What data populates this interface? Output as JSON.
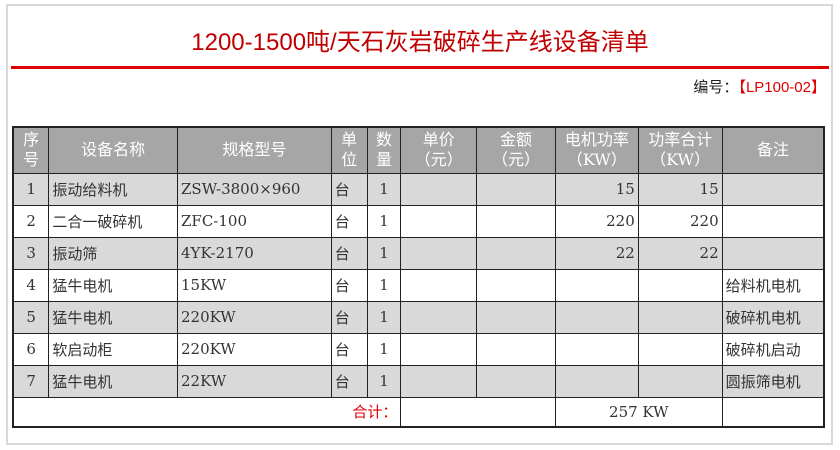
{
  "title": "1200-1500吨/天石灰岩破碎生产线设备清单",
  "code_label": "编号：",
  "code_value": "【LP100-02】",
  "headers": {
    "no": [
      "序",
      "号"
    ],
    "name": "设备名称",
    "spec": "规格型号",
    "unit": [
      "单",
      "位"
    ],
    "qty": [
      "数",
      "量"
    ],
    "price": [
      "单价",
      "（元）"
    ],
    "amount": [
      "金额",
      "（元）"
    ],
    "power": [
      "电机功率",
      "（KW）"
    ],
    "power_total": [
      "功率合计",
      "（KW）"
    ],
    "remark": "备注"
  },
  "rows": [
    {
      "no": "1",
      "name": "振动给料机",
      "spec": "ZSW-3800×960",
      "unit": "台",
      "qty": "1",
      "price": "",
      "amount": "",
      "power": "15",
      "power_total": "15",
      "remark": ""
    },
    {
      "no": "2",
      "name": "二合一破碎机",
      "spec": "ZFC-100",
      "unit": "台",
      "qty": "1",
      "price": "",
      "amount": "",
      "power": "220",
      "power_total": "220",
      "remark": ""
    },
    {
      "no": "3",
      "name": "振动筛",
      "spec": "4YK-2170",
      "unit": "台",
      "qty": "1",
      "price": "",
      "amount": "",
      "power": "22",
      "power_total": "22",
      "remark": ""
    },
    {
      "no": "4",
      "name": "猛牛电机",
      "spec": "15KW",
      "unit": "台",
      "qty": "1",
      "price": "",
      "amount": "",
      "power": "",
      "power_total": "",
      "remark": "给料机电机"
    },
    {
      "no": "5",
      "name": "猛牛电机",
      "spec": "220KW",
      "unit": "台",
      "qty": "1",
      "price": "",
      "amount": "",
      "power": "",
      "power_total": "",
      "remark": "破碎机电机"
    },
    {
      "no": "6",
      "name": "软启动柜",
      "spec": "220KW",
      "unit": "台",
      "qty": "1",
      "price": "",
      "amount": "",
      "power": "",
      "power_total": "",
      "remark": "破碎机启动"
    },
    {
      "no": "7",
      "name": "猛牛电机",
      "spec": "22KW",
      "unit": "台",
      "qty": "1",
      "price": "",
      "amount": "",
      "power": "",
      "power_total": "",
      "remark": "圆振筛电机"
    }
  ],
  "total": {
    "label": "合计：",
    "power": "257 KW"
  }
}
